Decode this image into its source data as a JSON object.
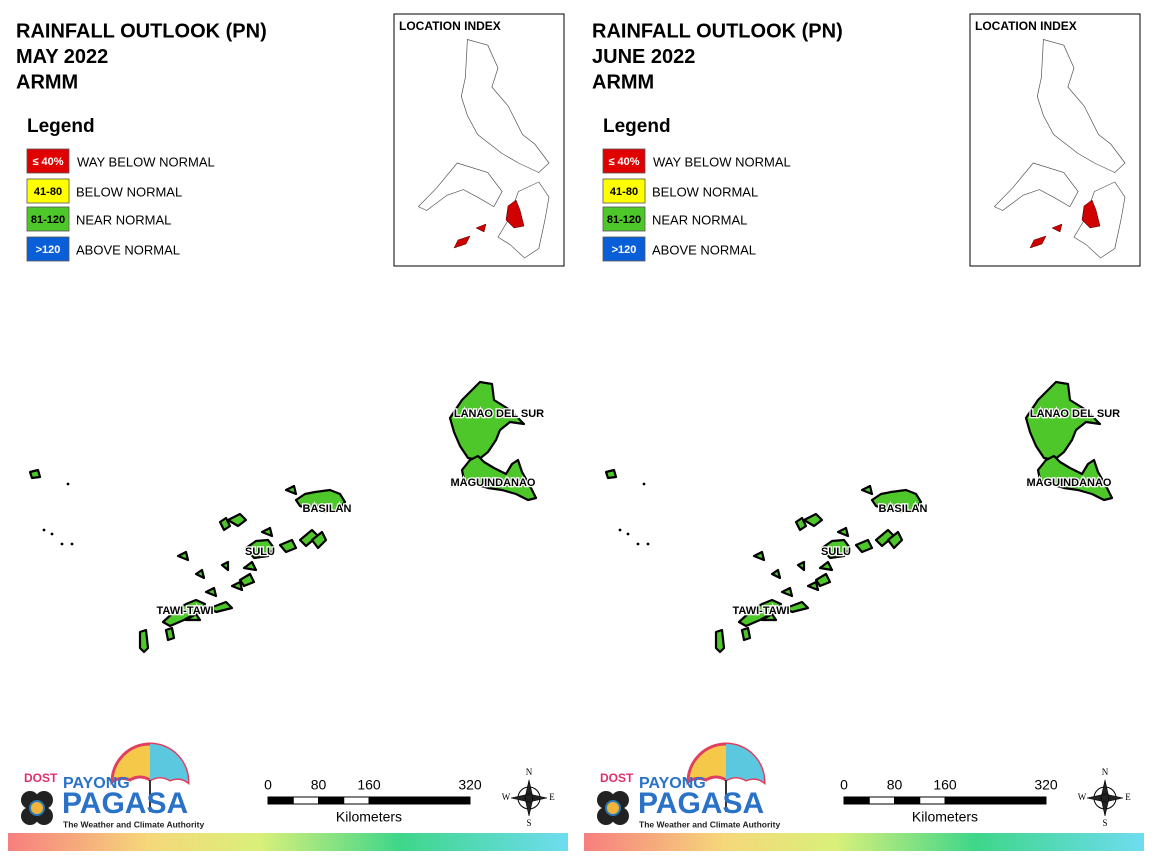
{
  "panels": [
    {
      "title_lines": [
        "RAINFALL OUTLOOK (PN)",
        "MAY 2022",
        "ARMM"
      ],
      "legend_title": "Legend",
      "legend": [
        {
          "swatch": "≤ 40%",
          "label": "WAY BELOW NORMAL",
          "color": "#e00000",
          "text_color": "#ffffff"
        },
        {
          "swatch": "41-80",
          "label": "BELOW NORMAL",
          "color": "#ffff00",
          "text_color": "#000000"
        },
        {
          "swatch": "81-120",
          "label": "NEAR NORMAL",
          "color": "#4ec72a",
          "text_color": "#000000"
        },
        {
          "swatch": ">120",
          "label": "ABOVE NORMAL",
          "color": "#0a5fd8",
          "text_color": "#ffffff"
        }
      ],
      "fill_color": "#4ec72a",
      "location_index": "LOCATION INDEX",
      "provinces": [
        "LANAO DEL SUR",
        "MAGUINDANAO",
        "BASILAN",
        "SULU",
        "TAWI-TAWI"
      ],
      "scale_ticks": [
        0,
        80,
        160,
        320
      ],
      "scale_unit": "Kilometers",
      "compass": [
        "N",
        "E",
        "S",
        "W"
      ],
      "logo": {
        "agency": "DOST",
        "brand_top": "PAYONG",
        "brand": "PAGASA",
        "tagline": "The Weather and Climate Authority"
      }
    },
    {
      "title_lines": [
        "RAINFALL OUTLOOK (PN)",
        "JUNE 2022",
        "ARMM"
      ],
      "legend_title": "Legend",
      "legend": [
        {
          "swatch": "≤ 40%",
          "label": "WAY BELOW NORMAL",
          "color": "#e00000",
          "text_color": "#ffffff"
        },
        {
          "swatch": "41-80",
          "label": "BELOW NORMAL",
          "color": "#ffff00",
          "text_color": "#000000"
        },
        {
          "swatch": "81-120",
          "label": "NEAR NORMAL",
          "color": "#4ec72a",
          "text_color": "#000000"
        },
        {
          "swatch": ">120",
          "label": "ABOVE NORMAL",
          "color": "#0a5fd8",
          "text_color": "#ffffff"
        }
      ],
      "fill_color": "#4ec72a",
      "location_index": "LOCATION INDEX",
      "provinces": [
        "LANAO DEL SUR",
        "MAGUINDANAO",
        "BASILAN",
        "SULU",
        "TAWI-TAWI"
      ],
      "scale_ticks": [
        0,
        80,
        160,
        320
      ],
      "scale_unit": "Kilometers",
      "compass": [
        "N",
        "E",
        "S",
        "W"
      ],
      "logo": {
        "agency": "DOST",
        "brand_top": "PAYONG",
        "brand": "PAGASA",
        "tagline": "The Weather and Climate Authority"
      }
    }
  ]
}
